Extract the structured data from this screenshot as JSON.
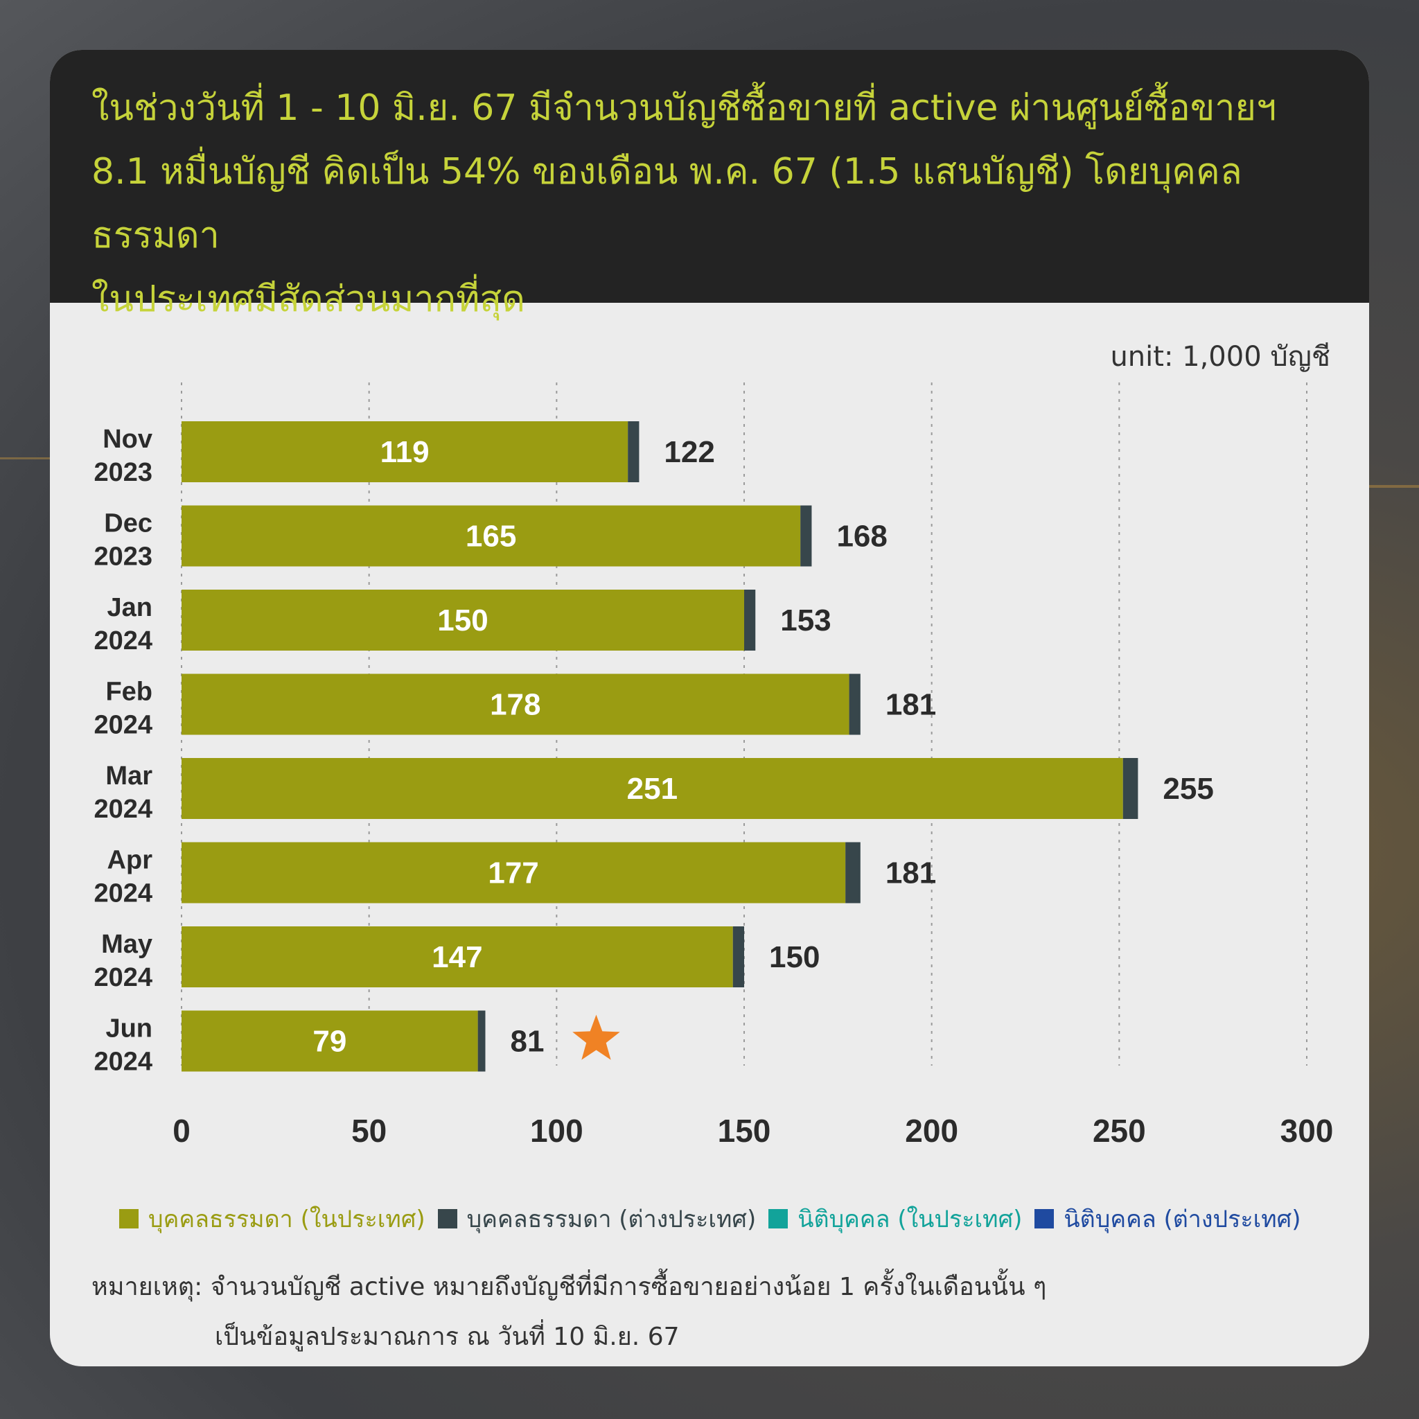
{
  "headline": {
    "line1": "ในช่วงวันที่ 1 - 10 มิ.ย. 67 มีจำนวนบัญชีซื้อขายที่ active ผ่านศูนย์ซื้อขายฯ",
    "line2": "8.1 หมื่นบัญชี คิดเป็น 54% ของเดือน พ.ค. 67 (1.5 แสนบัญชี) โดยบุคคลธรรมดา",
    "line3": "ในประเทศมีสัดส่วนมากที่สุด"
  },
  "unit_label": "unit: 1,000 บัญชี",
  "colors": {
    "header_bg": "#232323",
    "headline_text": "#c6d33a",
    "domestic_individual": "#9a9c12",
    "foreign_individual": "#37464b",
    "domestic_juristic": "#12a39a",
    "foreign_juristic": "#1f4aa0",
    "star": "#f08224"
  },
  "chart_data": {
    "type": "bar",
    "orientation": "horizontal",
    "stacked": true,
    "categories": [
      [
        "Nov",
        "2023"
      ],
      [
        "Dec",
        "2023"
      ],
      [
        "Jan",
        "2024"
      ],
      [
        "Feb",
        "2024"
      ],
      [
        "Mar",
        "2024"
      ],
      [
        "Apr",
        "2024"
      ],
      [
        "May",
        "2024"
      ],
      [
        "Jun",
        "2024"
      ]
    ],
    "series": [
      {
        "name": "บุคคลธรรมดา (ในประเทศ)",
        "values": [
          119,
          165,
          150,
          178,
          251,
          177,
          147,
          79
        ]
      },
      {
        "name": "บุคคลธรรมดา (ต่างประเทศ)",
        "values": [
          3,
          3,
          3,
          3,
          4,
          4,
          3,
          2
        ]
      },
      {
        "name": "นิติบุคคล (ในประเทศ)",
        "values": [
          0,
          0,
          0,
          0,
          0,
          0,
          0,
          0
        ]
      },
      {
        "name": "นิติบุคคล (ต่างประเทศ)",
        "values": [
          0,
          0,
          0,
          0,
          0,
          0,
          0,
          0
        ]
      }
    ],
    "inner_labels": [
      "119",
      "165",
      "150",
      "178",
      "251",
      "177",
      "147",
      "79"
    ],
    "totals": [
      "122",
      "168",
      "153",
      "181",
      "255",
      "181",
      "150",
      "81"
    ],
    "xlim": [
      0,
      300
    ],
    "xticks": [
      "0",
      "50",
      "100",
      "150",
      "200",
      "250",
      "300"
    ],
    "grid": "vertical dashed",
    "legend_position": "bottom",
    "highlight": {
      "category_index": 7,
      "marker": "star"
    }
  },
  "note": {
    "prefix": "หมายเหตุ:",
    "line1": "จำนวนบัญชี active หมายถึงบัญชีที่มีการซื้อขายอย่างน้อย 1 ครั้งในเดือนนั้น ๆ",
    "line2": "เป็นข้อมูลประมาณการ ณ วันที่ 10 มิ.ย. 67"
  }
}
